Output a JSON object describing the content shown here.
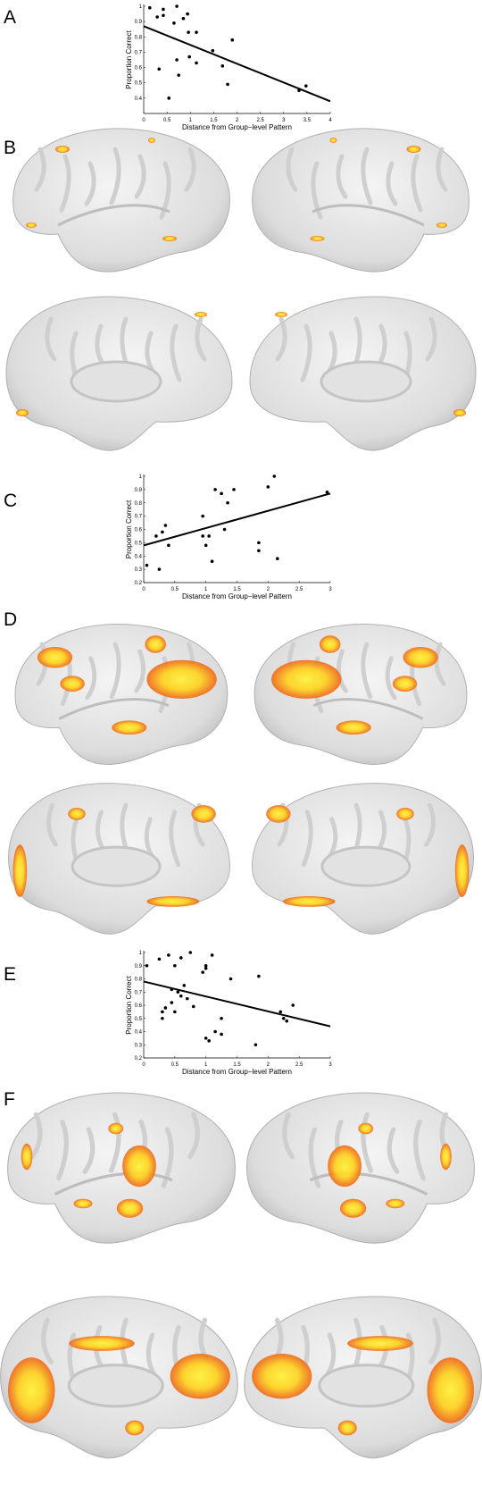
{
  "panels": [
    "A",
    "B",
    "C",
    "D",
    "E",
    "F"
  ],
  "chart_data": [
    {
      "type": "scatter",
      "xlabel": "Distance from Group−level Pattern",
      "ylabel": "Proportion Correct",
      "xlim": [
        0,
        4
      ],
      "xticks": [
        0,
        0.5,
        1,
        1.5,
        2,
        2.5,
        3,
        3.5,
        4
      ],
      "ylim": [
        0.3,
        1
      ],
      "yticks": [
        0.4,
        0.5,
        0.6,
        0.7,
        0.8,
        0.9,
        1
      ],
      "color": "#000000",
      "x": [
        0.13,
        0.29,
        0.42,
        0.42,
        0.71,
        0.85,
        0.94,
        0.65,
        0.96,
        1.13,
        0.33,
        0.54,
        0.71,
        0.75,
        0.98,
        1.13,
        1.48,
        1.69,
        1.8,
        1.9,
        3.33,
        3.48
      ],
      "values": [
        0.99,
        0.93,
        0.98,
        0.94,
        1.0,
        0.92,
        0.95,
        0.89,
        0.83,
        0.83,
        0.59,
        0.4,
        0.65,
        0.55,
        0.67,
        0.63,
        0.71,
        0.61,
        0.49,
        0.78,
        0.45,
        0.48
      ],
      "fit": {
        "x": [
          0,
          4
        ],
        "values": [
          0.87,
          0.38
        ]
      }
    },
    {
      "type": "scatter",
      "xlabel": "Distance from Group−level Pattern",
      "ylabel": "Proportion Correct",
      "xlim": [
        0,
        3
      ],
      "xticks": [
        0,
        0.5,
        1,
        1.5,
        2,
        2.5,
        3
      ],
      "ylim": [
        0.2,
        1
      ],
      "yticks": [
        0.2,
        0.3,
        0.4,
        0.5,
        0.6,
        0.7,
        0.8,
        0.9,
        1
      ],
      "color": "#000000",
      "x": [
        0.05,
        0.2,
        0.3,
        0.35,
        0.25,
        0.4,
        0.95,
        0.95,
        1.0,
        1.05,
        1.1,
        1.15,
        1.25,
        1.3,
        1.35,
        1.45,
        1.85,
        1.85,
        2.0,
        2.1,
        2.15,
        2.95
      ],
      "values": [
        0.33,
        0.55,
        0.58,
        0.63,
        0.3,
        0.48,
        0.7,
        0.55,
        0.48,
        0.55,
        0.36,
        0.9,
        0.87,
        0.6,
        0.8,
        0.9,
        0.5,
        0.44,
        0.92,
        1.0,
        0.38,
        0.88
      ],
      "fit": {
        "x": [
          0,
          3
        ],
        "values": [
          0.48,
          0.87
        ]
      }
    },
    {
      "type": "scatter",
      "xlabel": "Distance from Group−level Pattern",
      "ylabel": "Proportion Correct",
      "xlim": [
        0,
        3
      ],
      "xticks": [
        0,
        0.5,
        1,
        1.5,
        2,
        2.5,
        3
      ],
      "ylim": [
        0.2,
        1
      ],
      "yticks": [
        0.2,
        0.3,
        0.4,
        0.5,
        0.6,
        0.7,
        0.8,
        0.9,
        1
      ],
      "color": "#000000",
      "x": [
        0.05,
        0.25,
        0.3,
        0.3,
        0.35,
        0.4,
        0.45,
        0.45,
        0.5,
        0.5,
        0.55,
        0.6,
        0.6,
        0.65,
        0.7,
        0.75,
        0.8,
        0.95,
        1.0,
        1.0,
        1.0,
        1.05,
        1.1,
        1.15,
        1.25,
        1.25,
        1.4,
        1.8,
        1.85,
        2.2,
        2.25,
        2.3,
        2.4
      ],
      "values": [
        0.9,
        0.95,
        0.5,
        0.55,
        0.58,
        0.98,
        0.72,
        0.62,
        0.9,
        0.55,
        0.7,
        0.96,
        0.67,
        0.75,
        0.65,
        1.0,
        0.59,
        0.85,
        0.9,
        0.88,
        0.35,
        0.33,
        0.98,
        0.4,
        0.5,
        0.38,
        0.8,
        0.3,
        0.82,
        0.55,
        0.5,
        0.48,
        0.6
      ],
      "fit": {
        "x": [
          0,
          3
        ],
        "values": [
          0.78,
          0.44
        ]
      }
    }
  ]
}
